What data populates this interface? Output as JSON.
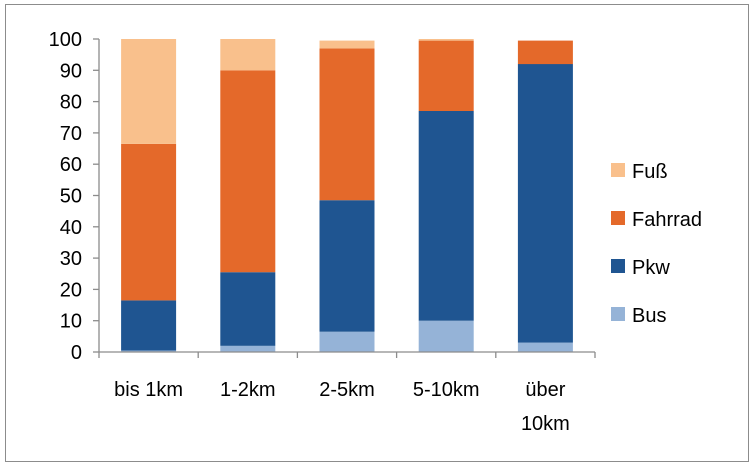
{
  "chart_data": {
    "type": "bar",
    "stacked": true,
    "categories": [
      [
        "bis 1km"
      ],
      [
        "1-2km"
      ],
      [
        "2-5km"
      ],
      [
        "5-10km"
      ],
      [
        "über",
        "10km"
      ]
    ],
    "series": [
      {
        "name": "Bus",
        "color": "#95b3d7",
        "values": [
          0.5,
          2,
          6.5,
          10,
          3
        ]
      },
      {
        "name": "Pkw",
        "color": "#1f5591",
        "values": [
          16,
          23.5,
          42,
          67,
          89
        ]
      },
      {
        "name": "Fahrrad",
        "color": "#e4692a",
        "values": [
          50,
          64.5,
          48.5,
          22.5,
          7.5
        ]
      },
      {
        "name": "Fuß",
        "color": "#f9c08c",
        "values": [
          33.5,
          10,
          2.5,
          0.5,
          0
        ]
      }
    ],
    "ylim": [
      0,
      100
    ],
    "yticks": [
      0,
      10,
      20,
      30,
      40,
      50,
      60,
      70,
      80,
      90,
      100
    ],
    "grid": false,
    "legend_position": "right",
    "legend_order": [
      "Fuß",
      "Fahrrad",
      "Pkw",
      "Bus"
    ]
  }
}
